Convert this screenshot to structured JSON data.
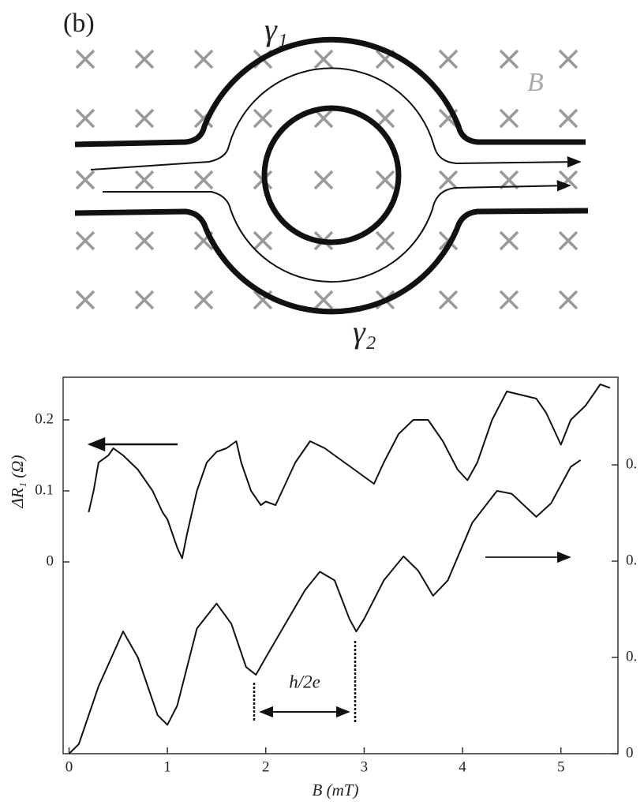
{
  "diagram": {
    "panel_label": "(b)",
    "labels": [
      "γ₁",
      "γ₂",
      "B"
    ]
  },
  "chart_data": {
    "type": "line",
    "xlabel": "B (mT)",
    "ylabel": "ΔR₁ (Ω)",
    "xlim": [
      -0.06,
      5.58
    ],
    "xticks": [
      0,
      1,
      2,
      3,
      4,
      5
    ],
    "ylim": [
      -0.27,
      0.26
    ],
    "yticks": [
      0,
      0.1,
      0.2
    ],
    "y2lim": [
      0,
      3.91
    ],
    "y2ticks": [
      {
        "value": 0,
        "label": "0"
      },
      {
        "value": 1,
        "label": "0."
      },
      {
        "value": 2,
        "label": "0."
      },
      {
        "value": 3,
        "label": "0."
      }
    ],
    "annotations": [
      "h/2e"
    ],
    "series": [
      {
        "color": "#111111",
        "x": [
          0.2,
          0.25,
          0.3,
          0.4,
          0.45,
          0.55,
          0.7,
          0.85,
          0.95,
          1.0,
          1.1,
          1.15,
          1.2,
          1.3,
          1.4,
          1.5,
          1.6,
          1.7,
          1.75,
          1.85,
          1.95,
          2.0,
          2.1,
          2.2,
          2.3,
          2.45,
          2.6,
          2.8,
          2.9,
          3.0,
          3.1,
          3.2,
          3.35,
          3.5,
          3.65,
          3.8,
          3.95,
          4.05,
          4.15,
          4.3,
          4.45,
          4.6,
          4.75,
          4.85,
          5.0,
          5.1,
          5.25,
          5.4,
          5.5
        ],
        "values": [
          0.07,
          0.1,
          0.14,
          0.15,
          0.16,
          0.15,
          0.13,
          0.1,
          0.07,
          0.06,
          0.02,
          0.005,
          0.04,
          0.1,
          0.14,
          0.155,
          0.16,
          0.17,
          0.14,
          0.1,
          0.08,
          0.085,
          0.08,
          0.11,
          0.14,
          0.17,
          0.16,
          0.14,
          0.13,
          0.12,
          0.11,
          0.14,
          0.18,
          0.2,
          0.2,
          0.17,
          0.13,
          0.115,
          0.14,
          0.2,
          0.24,
          0.235,
          0.23,
          0.21,
          0.165,
          0.2,
          0.22,
          0.25,
          0.245
        ]
      },
      {
        "color": "#111111",
        "axis": "y2",
        "x": [
          0,
          0.1,
          0.3,
          0.55,
          0.7,
          0.9,
          1.0,
          1.1,
          1.3,
          1.5,
          1.65,
          1.8,
          1.9,
          2.0,
          2.2,
          2.4,
          2.55,
          2.7,
          2.85,
          2.92,
          3.0,
          3.2,
          3.4,
          3.55,
          3.7,
          3.85,
          4.1,
          4.35,
          4.5,
          4.75,
          4.9,
          5.1,
          5.2
        ],
        "values": [
          0,
          0.1,
          0.7,
          1.27,
          1.0,
          0.4,
          0.3,
          0.5,
          1.3,
          1.56,
          1.35,
          0.9,
          0.82,
          1.0,
          1.35,
          1.7,
          1.89,
          1.8,
          1.4,
          1.27,
          1.4,
          1.8,
          2.05,
          1.9,
          1.64,
          1.8,
          2.4,
          2.73,
          2.7,
          2.46,
          2.6,
          2.98,
          3.05
        ]
      }
    ]
  }
}
